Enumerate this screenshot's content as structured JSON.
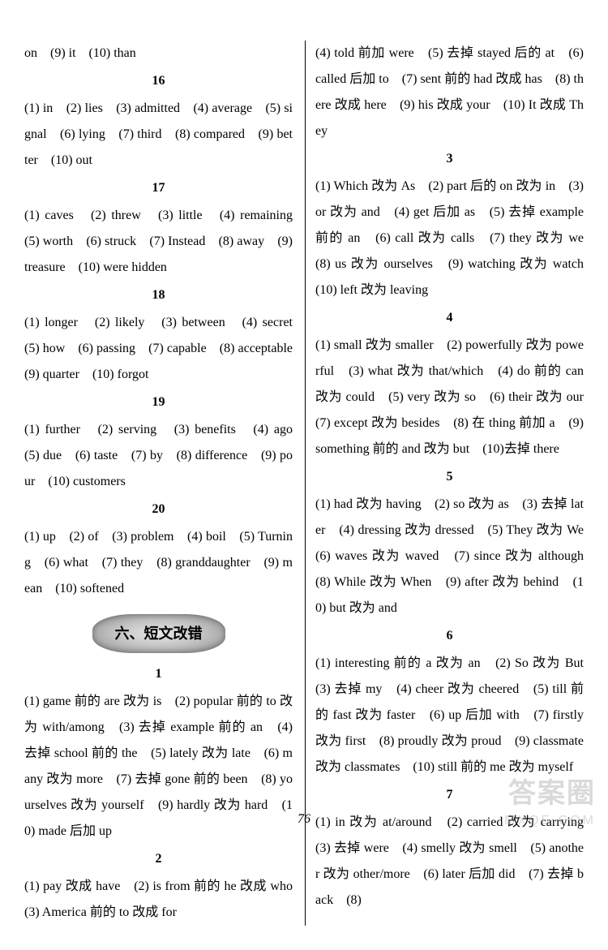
{
  "left": {
    "top_continue": "on　(9) it　(10) than",
    "s16_num": "16",
    "s16": "(1) in　(2) lies　(3) admitted　(4) average　(5) signal　(6) lying　(7) third　(8) compared　(9) better　(10) out",
    "s17_num": "17",
    "s17": "(1) caves　(2) threw　(3) little　(4) remaining　(5) worth　(6) struck　(7) Instead　(8) away　(9) treasure　(10) were hidden",
    "s18_num": "18",
    "s18": "(1) longer　(2) likely　(3) between　(4) secret　(5) how　(6) passing　(7) capable　(8) acceptable　(9) quarter　(10) forgot",
    "s19_num": "19",
    "s19": "(1) further　(2) serving　(3) benefits　(4) ago　(5) due　(6) taste　(7) by　(8) difference　(9) pour　(10) customers",
    "s20_num": "20",
    "s20": "(1) up　(2) of　(3) problem　(4) boil　(5) Turning　(6) what　(7) they　(8) granddaughter　(9) mean　(10) softened",
    "title6": "六、短文改错",
    "e1_num": "1",
    "e1": "(1) game 前的 are 改为 is　(2) popular 前的 to 改为 with/among　(3) 去掉 example 前的 an　(4) 去掉 school 前的 the　(5) lately 改为 late　(6) many 改为 more　(7) 去掉 gone 前的 been　(8) yourselves 改为 yourself　(9) hardly 改为 hard　(10) made 后加 up",
    "e2_num": "2",
    "e2": "(1) pay 改成 have　(2) is from 前的 he 改成 who　(3) America 前的 to 改成 for"
  },
  "right": {
    "top_continue": "(4) told 前加 were　(5) 去掉 stayed 后的 at　(6) called 后加 to　(7) sent 前的 had 改成 has　(8) there 改成 here　(9) his 改成 your　(10) It 改成 They",
    "e3_num": "3",
    "e3": "(1) Which 改为 As　(2) part 后的 on 改为 in　(3) or 改为 and　(4) get 后加 as　(5) 去掉 example 前的 an　(6) call 改为 calls　(7) they 改为 we　(8) us 改为 ourselves　(9) watching 改为 watch　(10) left 改为 leaving",
    "e4_num": "4",
    "e4": "(1) small 改为 smaller　(2) powerfully 改为 powerful　(3) what 改为 that/which　(4) do 前的 can 改为 could　(5) very 改为 so　(6) their 改为 our　(7) except 改为 besides　(8) 在 thing 前加 a　(9) something 前的 and 改为 but　(10)去掉 there",
    "e5_num": "5",
    "e5": "(1) had 改为 having　(2) so 改为 as　(3) 去掉 later　(4) dressing 改为 dressed　(5) They 改为 We　(6) waves 改为 waved　(7) since 改为 although　(8) While 改为 When　(9) after 改为 behind　(10) but 改为 and",
    "e6_num": "6",
    "e6": "(1) interesting 前的 a 改为 an　(2) So 改为 But　(3) 去掉 my　(4) cheer 改为 cheered　(5) till 前的 fast 改为 faster　(6) up 后加 with　(7) firstly 改为 first　(8) proudly 改为 proud　(9) classmate 改为 classmates　(10) still 前的 me 改为 myself",
    "e7_num": "7",
    "e7": "(1) in 改为 at/around　(2) carried 改为 carrying　(3) 去掉 were　(4) smelly 改为 smell　(5) another 改为 other/more　(6) later 后加 did　(7) 去掉 back　(8)"
  },
  "page_number": "76",
  "watermark_main": "答案圈",
  "watermark_sub": "MXQE.COM"
}
